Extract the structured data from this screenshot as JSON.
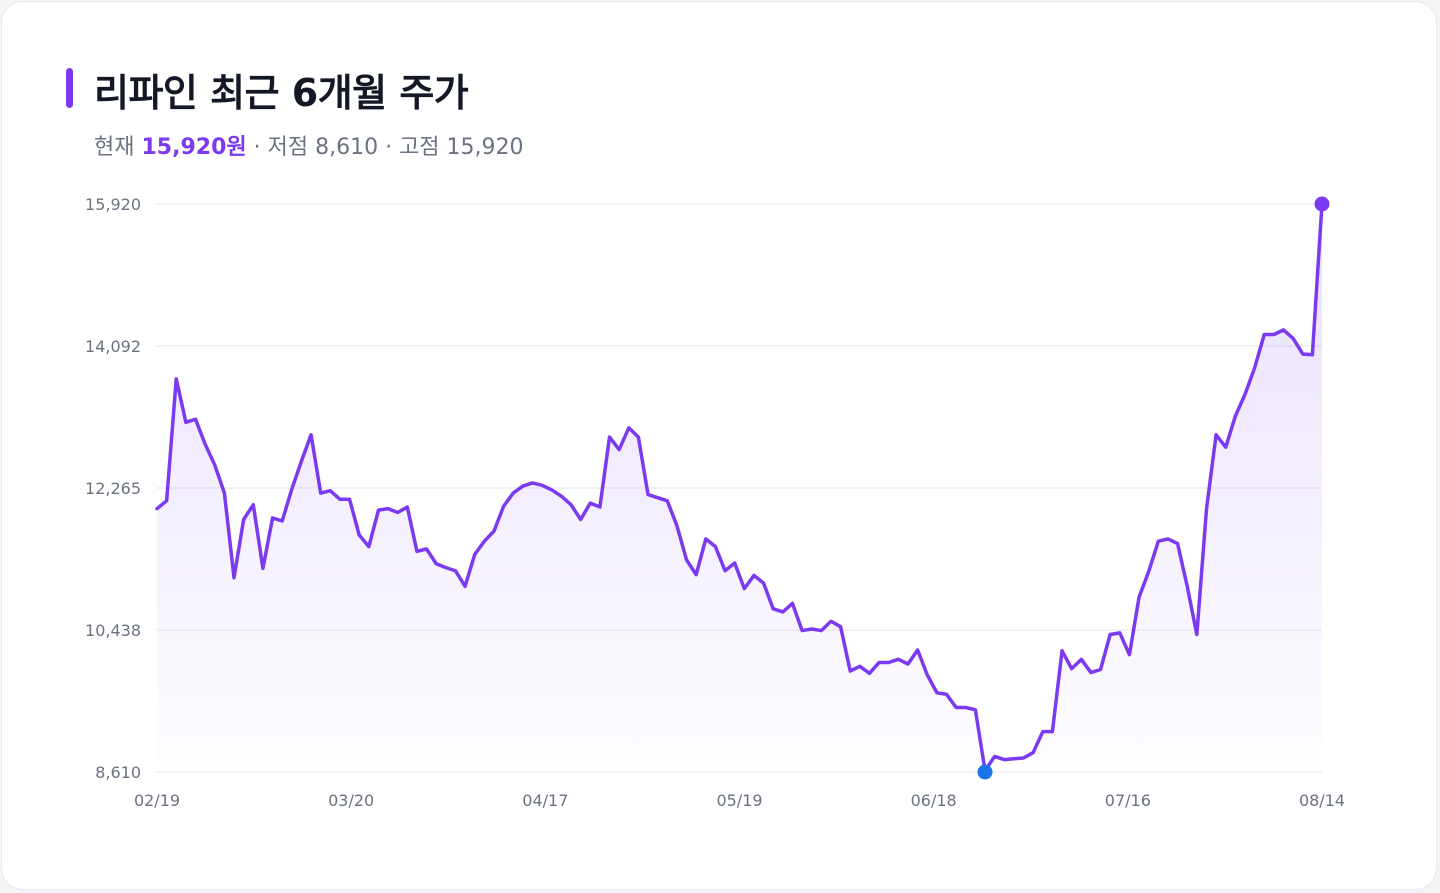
{
  "title": "리파인 최근 6개월 주가",
  "summary": {
    "current_label": "현재",
    "current_value": "15,920원",
    "low_text": "· 저점 8,610",
    "high_text": "· 고점 15,920"
  },
  "colors": {
    "accent": "#7b3af0",
    "low_marker": "#1a73e8",
    "grid": "#e6e6ee",
    "text_muted": "#6b7280"
  },
  "chart_data": {
    "type": "area",
    "title": "리파인 최근 6개월 주가",
    "xlabel": "",
    "ylabel": "",
    "ylim": [
      8610,
      15920
    ],
    "y_ticks": [
      "15,920",
      "14,092",
      "12,265",
      "10,438",
      "8,610"
    ],
    "y_tick_values": [
      15920,
      14092,
      12265,
      10438,
      8610
    ],
    "x_ticks": [
      "02/19",
      "03/20",
      "04/17",
      "05/19",
      "06/18",
      "07/16",
      "08/14"
    ],
    "grid": true,
    "markers": {
      "low": {
        "value": 8610,
        "color": "#1a73e8"
      },
      "high": {
        "value": 15920,
        "color": "#7b3af0"
      }
    },
    "series": [
      {
        "values": [
          12000,
          12100,
          13670,
          13110,
          13150,
          12830,
          12560,
          12200,
          11110,
          11860,
          12050,
          11230,
          11880,
          11840,
          12250,
          12610,
          12950,
          12200,
          12230,
          12120,
          12120,
          11660,
          11510,
          11980,
          12000,
          11950,
          12020,
          11450,
          11480,
          11290,
          11240,
          11200,
          11000,
          11410,
          11580,
          11710,
          12030,
          12200,
          12290,
          12330,
          12300,
          12240,
          12160,
          12050,
          11860,
          12070,
          12020,
          12920,
          12760,
          13040,
          12920,
          12180,
          12140,
          12100,
          11780,
          11340,
          11150,
          11610,
          11510,
          11200,
          11300,
          10970,
          11140,
          11040,
          10710,
          10670,
          10780,
          10430,
          10450,
          10430,
          10550,
          10480,
          9910,
          9970,
          9880,
          10020,
          10020,
          10060,
          10000,
          10180,
          9860,
          9630,
          9610,
          9440,
          9440,
          9410,
          8630,
          8810,
          8770,
          8780,
          8790,
          8860,
          9130,
          9130,
          10170,
          9940,
          10060,
          9890,
          9930,
          10380,
          10400,
          10120,
          10860,
          11190,
          11580,
          11610,
          11550,
          11000,
          10380,
          11990,
          12950,
          12790,
          13190,
          13470,
          13810,
          14240,
          14240,
          14300,
          14190,
          13990,
          13980,
          15920
        ]
      }
    ]
  }
}
